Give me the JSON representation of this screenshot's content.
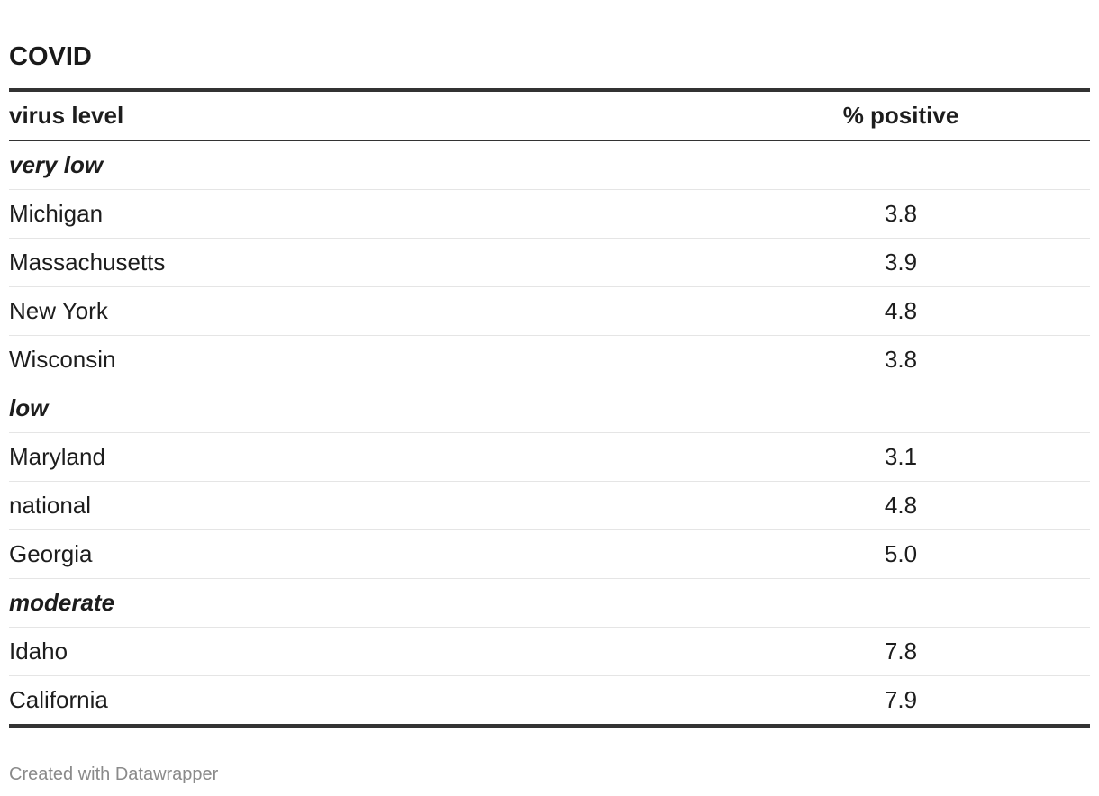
{
  "title": "COVID",
  "chart_data": {
    "type": "table",
    "title": "COVID",
    "columns": [
      "virus level",
      "% positive"
    ],
    "groups": [
      {
        "label": "very low",
        "rows": [
          {
            "name": "Michigan",
            "value": "3.8"
          },
          {
            "name": "Massachusetts",
            "value": "3.9"
          },
          {
            "name": "New York",
            "value": "4.8"
          },
          {
            "name": "Wisconsin",
            "value": "3.8"
          }
        ]
      },
      {
        "label": "low",
        "rows": [
          {
            "name": "Maryland",
            "value": "3.1"
          },
          {
            "name": "national",
            "value": "4.8"
          },
          {
            "name": "Georgia",
            "value": "5.0"
          }
        ]
      },
      {
        "label": "moderate",
        "rows": [
          {
            "name": "Idaho",
            "value": "7.8"
          },
          {
            "name": "California",
            "value": "7.9"
          }
        ]
      }
    ]
  },
  "footer": "Created with Datawrapper",
  "colors": {
    "text": "#1d1d1d",
    "rule": "#333333",
    "divider": "#e5e5e5",
    "footer": "#8a8a8a"
  }
}
